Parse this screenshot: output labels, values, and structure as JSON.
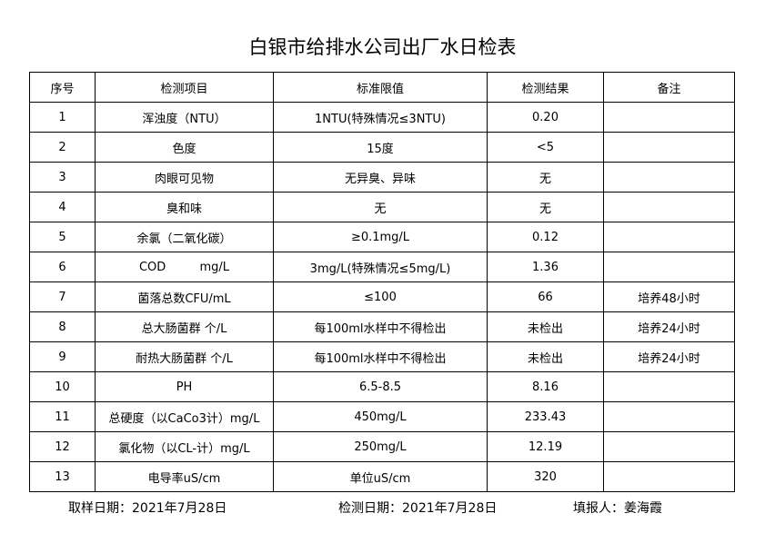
{
  "header": {
    "title": "白银市给排水公司出厂水日检表"
  },
  "table": {
    "columns": [
      "序号",
      "检测项目",
      "标准限值",
      "检测结果",
      "备注"
    ],
    "rows": [
      {
        "no": "1",
        "item": "浑浊度（NTU）",
        "standard": "1NTU(特殊情况≤3NTU)",
        "result": "0.20"
      },
      {
        "no": "2",
        "item": "色度",
        "standard": "15度",
        "result": "<5"
      },
      {
        "no": "3",
        "item": "肉眼可见物",
        "standard": "无异臭、异味",
        "result": "无"
      },
      {
        "no": "4",
        "item": "臭和味",
        "standard": "无",
        "result": "无"
      },
      {
        "no": "5",
        "item": "余氯（二氧化碳）",
        "standard": "≥0.1mg/L",
        "result": "0.12"
      },
      {
        "no": "6",
        "item": "COD         mg/L",
        "standard": "3mg/L(特殊情况≤5mg/L)",
        "result": "1.36"
      },
      {
        "no": "7",
        "item": "菌落总数CFU/mL",
        "standard": "≤100",
        "result": "66",
        "note": "培养48小时"
      },
      {
        "no": "8",
        "item": "总大肠菌群 个/L",
        "standard": "每100ml水样中不得检出",
        "result": "未检出",
        "note": "培养24小时"
      },
      {
        "no": "9",
        "item": "耐热大肠菌群 个/L",
        "standard": "每100ml水样中不得检出",
        "result": "未检出",
        "note": "培养24小时"
      },
      {
        "no": "10",
        "item": "PH",
        "standard": "6.5-8.5",
        "result": "8.16"
      },
      {
        "no": "11",
        "item": "总硬度（以CaCo3计）mg/L",
        "standard": "450mg/L",
        "result": "233.43"
      },
      {
        "no": "12",
        "item": "氯化物（以CL-计）mg/L",
        "standard": "250mg/L",
        "result": "12.19"
      },
      {
        "no": "13",
        "item": "电导率uS/cm",
        "standard": "单位uS/cm",
        "result": "320"
      }
    ]
  },
  "footer": {
    "sampling_date": "取样日期：2021年7月28日",
    "test_date": "检测日期：2021年7月28日",
    "reporter": "填报人：姜海霞"
  }
}
